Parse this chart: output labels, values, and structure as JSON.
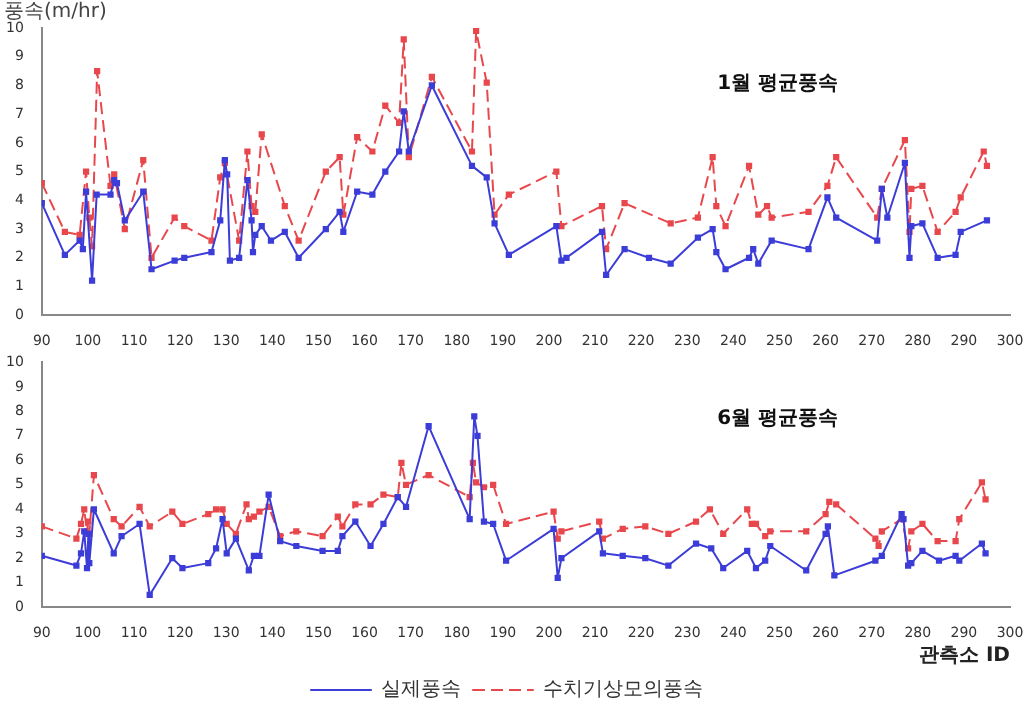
{
  "chart_data": [
    {
      "type": "line",
      "title": "1월 평균풍속",
      "ylabel": "풍속(m/hr)",
      "xlim": [
        90,
        300
      ],
      "xticks": [
        90,
        100,
        110,
        120,
        130,
        140,
        150,
        160,
        170,
        180,
        190,
        200,
        210,
        220,
        230,
        240,
        250,
        260,
        270,
        280,
        290,
        300
      ],
      "ylim": [
        0,
        10
      ],
      "yticks": [
        0,
        1,
        2,
        3,
        4,
        5,
        6,
        7,
        8,
        9,
        10
      ],
      "grid": false,
      "legend": false,
      "marker": "square",
      "series": [
        {
          "color": "#3c3cd8",
          "line_style": "solid",
          "x": [
            90,
            95,
            98.2,
            98.9,
            99.6,
            100.9,
            101.9,
            104.9,
            105.7,
            106.3,
            108,
            112,
            113.8,
            118.8,
            120.9,
            126.8,
            128.7,
            129.7,
            130.2,
            130.8,
            132.8,
            134.6,
            135.5,
            135.8,
            136.3,
            137.7,
            139.7,
            142.7,
            145.7,
            151.6,
            154.6,
            155.4,
            158.4,
            161.7,
            164.5,
            167.5,
            168.5,
            169.6,
            174.6,
            183.3,
            186.5,
            188.2,
            191.3,
            201.6,
            202.7,
            203.8,
            211.5,
            212.4,
            216.4,
            221.7,
            226.4,
            232.3,
            235.5,
            236.3,
            238.3,
            243.4,
            244.3,
            245.4,
            248.3,
            256.3,
            260.4,
            262.3,
            271.2,
            272.2,
            273.4,
            277.2,
            278.2,
            278.6,
            281,
            284.3,
            288.2,
            289.3,
            295
          ],
          "values": [
            3.9,
            2.1,
            2.6,
            2.3,
            4.3,
            1.2,
            4.2,
            4.2,
            4.7,
            4.6,
            3.3,
            4.3,
            1.6,
            1.9,
            2,
            2.2,
            3.3,
            5.4,
            4.9,
            1.9,
            2,
            4.7,
            3.3,
            2.2,
            2.8,
            3.1,
            2.6,
            2.9,
            2,
            3,
            3.6,
            2.9,
            4.3,
            4.2,
            5,
            5.7,
            7.1,
            5.7,
            8,
            5.2,
            4.8,
            3.2,
            2.1,
            3.1,
            1.9,
            2,
            2.9,
            1.4,
            2.3,
            2,
            1.8,
            2.7,
            3,
            2.2,
            1.6,
            2,
            2.3,
            1.8,
            2.6,
            2.3,
            4.1,
            3.4,
            2.6,
            4.4,
            3.4,
            5.3,
            2,
            3.1,
            3.2,
            2,
            2.1,
            2.9,
            3.3
          ]
        },
        {
          "color": "#e8474c",
          "line_style": "dashed",
          "x": [
            90,
            95,
            98.2,
            99.6,
            100.3,
            100.9,
            102,
            104.9,
            105.7,
            108,
            112,
            113.8,
            118.8,
            120.9,
            126.8,
            128.7,
            129.7,
            132.8,
            134.6,
            135.5,
            136.3,
            137.7,
            142.7,
            145.7,
            151.6,
            154.6,
            155.4,
            158.4,
            161.7,
            164.5,
            167.5,
            168.5,
            169.6,
            174.6,
            183.3,
            184.2,
            186.5,
            188.2,
            191.3,
            201.6,
            202.7,
            211.5,
            212.4,
            216.4,
            226.4,
            232.3,
            235.5,
            236.3,
            238.3,
            243.4,
            245.4,
            247.3,
            248.3,
            256.3,
            260.4,
            262.3,
            271.2,
            272.2,
            277.2,
            278.2,
            278.6,
            281,
            284.3,
            288.2,
            289.3,
            294.3,
            295
          ],
          "values": [
            4.6,
            2.9,
            2.8,
            5,
            3.4,
            2.4,
            8.5,
            4.5,
            4.9,
            3,
            5.4,
            2,
            3.4,
            3.1,
            2.6,
            4.8,
            5.3,
            2.6,
            5.7,
            3.8,
            3.6,
            6.3,
            3.8,
            2.6,
            5,
            5.5,
            3.5,
            6.2,
            5.7,
            7.3,
            6.7,
            9.6,
            5.5,
            8.3,
            5.7,
            9.9,
            8.1,
            3.5,
            4.2,
            5,
            3.1,
            3.8,
            2.3,
            3.9,
            3.2,
            3.4,
            5.5,
            3.8,
            3.1,
            5.2,
            3.5,
            3.8,
            3.4,
            3.6,
            4.5,
            5.5,
            3.4,
            4.4,
            6.1,
            2.9,
            4.4,
            4.5,
            2.9,
            3.6,
            4.1,
            5.7,
            5.2
          ]
        }
      ]
    },
    {
      "type": "line",
      "title": "6월 평균풍속",
      "xlabel": "관측소 ID",
      "xlim": [
        90,
        300
      ],
      "xticks": [
        90,
        100,
        110,
        120,
        130,
        140,
        150,
        160,
        170,
        180,
        190,
        200,
        210,
        220,
        230,
        240,
        250,
        260,
        270,
        280,
        290,
        300
      ],
      "ylim": [
        0,
        10
      ],
      "yticks": [
        0,
        1,
        2,
        3,
        4,
        5,
        6,
        7,
        8,
        9,
        10
      ],
      "grid": false,
      "legend": "bottom",
      "marker": "square",
      "series": [
        {
          "name": "실제풍속",
          "color": "#3c3cd8",
          "line_style": "solid",
          "x": [
            90,
            97.5,
            98.5,
            99.2,
            99.8,
            100.1,
            100.3,
            101.3,
            105.6,
            107.3,
            111.2,
            113.4,
            118.3,
            120.5,
            126.1,
            127.8,
            129.2,
            130.1,
            132.1,
            134.9,
            136,
            137.2,
            139.2,
            141.7,
            145.2,
            150.9,
            154.2,
            155.2,
            158,
            161.3,
            164.1,
            167.2,
            169,
            173.9,
            182.8,
            183.8,
            184.5,
            185.9,
            187.9,
            190.7,
            201,
            201.9,
            202.7,
            210.9,
            211.7,
            216,
            220.9,
            225.9,
            231.9,
            235.2,
            237.8,
            243,
            244.9,
            246.9,
            248,
            255.8,
            260,
            260.5,
            261.9,
            270.8,
            272.2,
            276.5,
            276.9,
            277.9,
            278.6,
            281,
            284.6,
            288.2,
            289,
            293.9,
            294.7
          ],
          "values": [
            2.1,
            1.7,
            2.2,
            3.1,
            1.6,
            3,
            1.8,
            4,
            2.2,
            2.9,
            3.4,
            0.5,
            2,
            1.6,
            1.8,
            2.4,
            3.6,
            2.2,
            2.8,
            1.5,
            2.1,
            2.1,
            4.6,
            2.7,
            2.5,
            2.3,
            2.3,
            2.9,
            3.5,
            2.5,
            3.4,
            4.5,
            4.1,
            7.4,
            3.6,
            7.8,
            7,
            3.5,
            3.4,
            1.9,
            3.2,
            1.2,
            2,
            3.1,
            2.2,
            2.1,
            2,
            1.7,
            2.6,
            2.4,
            1.6,
            2.3,
            1.6,
            1.9,
            2.5,
            1.5,
            3,
            3.3,
            1.3,
            1.9,
            2.1,
            3.8,
            3.6,
            1.7,
            1.8,
            2.3,
            1.9,
            2.1,
            1.9,
            2.6,
            2.2
          ]
        },
        {
          "name": "수치기상모의풍속",
          "color": "#e8474c",
          "line_style": "dashed",
          "x": [
            90,
            97.5,
            98.5,
            99.2,
            99.8,
            100.1,
            100.3,
            101.3,
            105.6,
            107.3,
            111.2,
            113.4,
            118.3,
            120.5,
            126.1,
            127.8,
            129.2,
            130.1,
            132.1,
            134.4,
            134.9,
            136,
            137.2,
            139.2,
            141.7,
            145.2,
            150.9,
            154.2,
            155.2,
            158,
            161.3,
            164.1,
            167.2,
            168,
            169,
            173.9,
            182.8,
            183.5,
            184.2,
            185.9,
            187.9,
            190.7,
            201,
            201.9,
            202.7,
            210.9,
            211.7,
            216,
            220.9,
            225.9,
            231.9,
            234.9,
            237.8,
            243,
            244,
            244.9,
            246.9,
            248,
            255.8,
            260,
            260.8,
            262.3,
            270.8,
            271.5,
            272.2,
            276.5,
            277.9,
            278.6,
            281,
            284.3,
            288.2,
            289,
            293.9,
            294.7
          ],
          "values": [
            3.3,
            2.8,
            3.4,
            4,
            3.1,
            3.5,
            3,
            5.4,
            3.6,
            3.3,
            4.1,
            3.3,
            3.9,
            3.4,
            3.8,
            4,
            4,
            3.4,
            3,
            4.2,
            3.6,
            3.7,
            3.9,
            4.1,
            2.9,
            3.1,
            2.9,
            3.7,
            3.3,
            4.2,
            4.2,
            4.6,
            4.5,
            5.9,
            5,
            5.4,
            4.5,
            5.9,
            5.1,
            4.9,
            5,
            3.4,
            3.9,
            2.8,
            3.1,
            3.5,
            2.8,
            3.2,
            3.3,
            3,
            3.5,
            4,
            3,
            4,
            3.4,
            3.4,
            2.9,
            3.1,
            3.1,
            3.8,
            4.3,
            4.2,
            2.8,
            2.5,
            3.1,
            3.6,
            2.4,
            3.1,
            3.4,
            2.7,
            2.7,
            3.6,
            5.1,
            4.4
          ]
        }
      ]
    }
  ]
}
